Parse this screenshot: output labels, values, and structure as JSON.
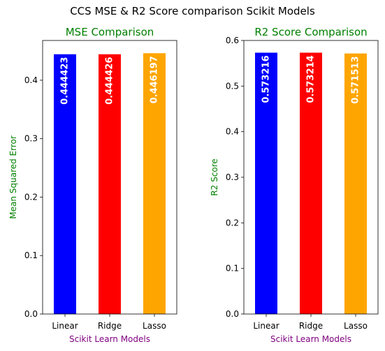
{
  "suptitle": "CCS MSE & R2 Score comparison Scikit Models",
  "chart_data": [
    {
      "type": "bar",
      "title": "MSE Comparison",
      "title_color": "#008000",
      "xlabel": "Scikit Learn Models",
      "xlabel_color": "#800080",
      "ylabel": "Mean Squared Error",
      "ylabel_color": "#008000",
      "categories": [
        "Linear",
        "Ridge",
        "Lasso"
      ],
      "values": [
        0.444423,
        0.444426,
        0.446197
      ],
      "data_labels": [
        "0.444423",
        "0.444426",
        "0.446197"
      ],
      "bar_colors": [
        "#0000ff",
        "#ff0000",
        "#ffa500"
      ],
      "label_color": "#ffffff",
      "ylim": [
        0,
        0.468
      ],
      "yticks": [
        0.0,
        0.1,
        0.2,
        0.3,
        0.4
      ],
      "ytick_labels": [
        "0.0",
        "0.1",
        "0.2",
        "0.3",
        "0.4"
      ],
      "grid": false
    },
    {
      "type": "bar",
      "title": "R2 Score Comparison",
      "title_color": "#008000",
      "xlabel": "Scikit Learn Models",
      "xlabel_color": "#800080",
      "ylabel": "R2 Score",
      "ylabel_color": "#008000",
      "categories": [
        "Linear",
        "Ridge",
        "Lasso"
      ],
      "values": [
        0.573216,
        0.573214,
        0.571513
      ],
      "data_labels": [
        "0.573216",
        "0.573214",
        "0.571513"
      ],
      "bar_colors": [
        "#0000ff",
        "#ff0000",
        "#ffa500"
      ],
      "label_color": "#ffffff",
      "ylim": [
        0,
        0.6
      ],
      "yticks": [
        0.0,
        0.1,
        0.2,
        0.3,
        0.4,
        0.5,
        0.6
      ],
      "ytick_labels": [
        "0.0",
        "0.1",
        "0.2",
        "0.3",
        "0.4",
        "0.5",
        "0.6"
      ],
      "grid": false
    }
  ]
}
